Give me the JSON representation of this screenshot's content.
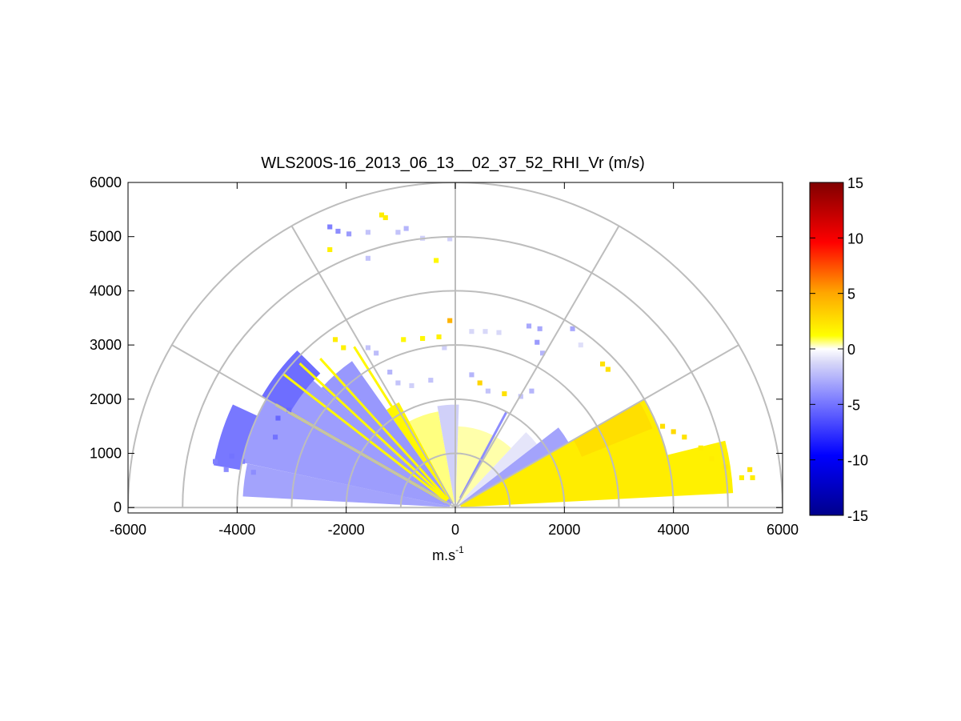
{
  "chart_data": {
    "type": "heatmap",
    "subtype": "polar RHI sector scan",
    "title": "WLS200S-16_2013_06_13__02_37_52_RHI_Vr (m/s)",
    "xlabel_base": "m.s",
    "xlabel_exp": "-1",
    "ylabel": "",
    "xlim": [
      -6000,
      6000
    ],
    "ylim": [
      -100,
      6000
    ],
    "x_ticks": [
      "-6000",
      "-4000",
      "-2000",
      "0",
      "2000",
      "4000",
      "6000"
    ],
    "y_ticks": [
      "0",
      "1000",
      "2000",
      "3000",
      "4000",
      "5000",
      "6000"
    ],
    "x_tick_values": [
      -6000,
      -4000,
      -2000,
      0,
      2000,
      4000,
      6000
    ],
    "y_tick_values": [
      0,
      1000,
      2000,
      3000,
      4000,
      5000,
      6000
    ],
    "polar_grid": {
      "range_rings": [
        1000,
        2000,
        3000,
        4000,
        5000,
        6000
      ],
      "spokes_deg": [
        0,
        30,
        60,
        90,
        120,
        150,
        180
      ]
    },
    "colorbar": {
      "ticks": [
        "15",
        "10",
        "5",
        "0",
        "-5",
        "-10",
        "-15"
      ],
      "tick_values": [
        15,
        10,
        5,
        0,
        -5,
        -10,
        -15
      ],
      "range": [
        -15,
        15
      ],
      "colormap": [
        "#00008B",
        "#0000FF",
        "#8080FF",
        "#D8D8F8",
        "#FFFFFF",
        "#FFFF00",
        "#FFA500",
        "#FF0000",
        "#800000"
      ]
    },
    "sectors": [
      {
        "el_from": 3,
        "el_to": 30,
        "r_from": 100,
        "r_to": 4000,
        "vr": 2.0
      },
      {
        "el_from": 3,
        "el_to": 14,
        "r_from": 4000,
        "r_to": 5100,
        "vr": 1.8
      },
      {
        "el_from": 22,
        "el_to": 30,
        "r_from": 2500,
        "r_to": 3900,
        "vr": 2.6
      },
      {
        "el_from": 30,
        "el_to": 38,
        "r_from": 100,
        "r_to": 2400,
        "vr": -3.2
      },
      {
        "el_from": 38,
        "el_to": 47,
        "r_from": 100,
        "r_to": 1900,
        "vr": -0.8
      },
      {
        "el_from": 47,
        "el_to": 88,
        "r_from": 100,
        "r_to": 1500,
        "vr": 0.4
      },
      {
        "el_from": 88,
        "el_to": 100,
        "r_from": 100,
        "r_to": 1900,
        "vr": -1.5
      },
      {
        "el_from": 100,
        "el_to": 118,
        "r_from": 100,
        "r_to": 1800,
        "vr": 0.6
      },
      {
        "el_from": 118,
        "el_to": 125,
        "r_from": 100,
        "r_to": 2200,
        "vr": 1.6
      },
      {
        "el_from": 125,
        "el_to": 138,
        "r_from": 100,
        "r_to": 3300,
        "vr": -3.6
      },
      {
        "el_from": 138,
        "el_to": 168,
        "r_from": 100,
        "r_to": 4000,
        "vr": -3.4
      },
      {
        "el_from": 168,
        "el_to": 177,
        "r_from": 100,
        "r_to": 3900,
        "vr": -3.2
      },
      {
        "el_from": 155,
        "el_to": 170,
        "r_from": 4000,
        "r_to": 4500,
        "vr": -4.8
      },
      {
        "el_from": 135,
        "el_to": 150,
        "r_from": 3500,
        "r_to": 4100,
        "vr": -5.2
      }
    ],
    "rays": [
      {
        "el": 122,
        "r_from": 200,
        "r_to": 3500,
        "vr": 1.5
      },
      {
        "el": 132,
        "r_from": 200,
        "r_to": 3700,
        "vr": 1.5
      },
      {
        "el": 137,
        "r_from": 200,
        "r_to": 3900,
        "vr": 1.5
      },
      {
        "el": 142,
        "r_from": 200,
        "r_to": 4000,
        "vr": 1.5
      },
      {
        "el": 150,
        "r_from": 200,
        "r_to": 3800,
        "vr": 1.5
      },
      {
        "el": 62,
        "r_from": 200,
        "r_to": 2000,
        "vr": -4.0
      }
    ],
    "cells": [
      {
        "x": -1350,
        "y": 5400,
        "vr": 2.0
      },
      {
        "x": -1280,
        "y": 5350,
        "vr": 2.0
      },
      {
        "x": -2300,
        "y": 5180,
        "vr": -4.5
      },
      {
        "x": -2150,
        "y": 5100,
        "vr": -4.0
      },
      {
        "x": -1950,
        "y": 5050,
        "vr": -3.5
      },
      {
        "x": -1600,
        "y": 5080,
        "vr": -2.0
      },
      {
        "x": -1050,
        "y": 5080,
        "vr": -2.0
      },
      {
        "x": -900,
        "y": 5150,
        "vr": -2.5
      },
      {
        "x": -600,
        "y": 4970,
        "vr": -1.5
      },
      {
        "x": -100,
        "y": 4960,
        "vr": -1.5
      },
      {
        "x": -2300,
        "y": 4760,
        "vr": 1.8
      },
      {
        "x": -1600,
        "y": 4600,
        "vr": -2.0
      },
      {
        "x": -350,
        "y": 4560,
        "vr": 1.5
      },
      {
        "x": -100,
        "y": 3450,
        "vr": 4.5
      },
      {
        "x": -2200,
        "y": 3100,
        "vr": 2.0
      },
      {
        "x": -2050,
        "y": 2950,
        "vr": 1.8
      },
      {
        "x": -1600,
        "y": 2950,
        "vr": -2.0
      },
      {
        "x": -1450,
        "y": 2850,
        "vr": -2.2
      },
      {
        "x": -950,
        "y": 3100,
        "vr": 1.5
      },
      {
        "x": -600,
        "y": 3120,
        "vr": 1.5
      },
      {
        "x": -300,
        "y": 3150,
        "vr": 1.8
      },
      {
        "x": -200,
        "y": 2950,
        "vr": -1.5
      },
      {
        "x": -1200,
        "y": 2500,
        "vr": -2.5
      },
      {
        "x": -1050,
        "y": 2300,
        "vr": -2.0
      },
      {
        "x": -800,
        "y": 2250,
        "vr": -1.5
      },
      {
        "x": -450,
        "y": 2350,
        "vr": -2.0
      },
      {
        "x": 300,
        "y": 3250,
        "vr": -1.2
      },
      {
        "x": 550,
        "y": 3250,
        "vr": -1.2
      },
      {
        "x": 800,
        "y": 3230,
        "vr": -1.2
      },
      {
        "x": 1350,
        "y": 3350,
        "vr": -3.0
      },
      {
        "x": 1550,
        "y": 3300,
        "vr": -3.0
      },
      {
        "x": 1500,
        "y": 3050,
        "vr": -3.5
      },
      {
        "x": 1600,
        "y": 2850,
        "vr": -2.5
      },
      {
        "x": 2150,
        "y": 3300,
        "vr": -3.0
      },
      {
        "x": 2300,
        "y": 3000,
        "vr": -1.0
      },
      {
        "x": 2700,
        "y": 2650,
        "vr": 2.5
      },
      {
        "x": 2800,
        "y": 2550,
        "vr": 2.5
      },
      {
        "x": 300,
        "y": 2450,
        "vr": -2.5
      },
      {
        "x": 450,
        "y": 2300,
        "vr": 3.0
      },
      {
        "x": 600,
        "y": 2150,
        "vr": -2.0
      },
      {
        "x": 900,
        "y": 2100,
        "vr": 2.5
      },
      {
        "x": 1200,
        "y": 2050,
        "vr": -2.0
      },
      {
        "x": 1400,
        "y": 2150,
        "vr": -2.5
      },
      {
        "x": 3800,
        "y": 1500,
        "vr": 2.6
      },
      {
        "x": 4000,
        "y": 1400,
        "vr": 2.8
      },
      {
        "x": 4200,
        "y": 1300,
        "vr": 2.4
      },
      {
        "x": 4500,
        "y": 1100,
        "vr": 2.0
      },
      {
        "x": 4700,
        "y": 900,
        "vr": 2.0
      },
      {
        "x": 4950,
        "y": 750,
        "vr": 2.2
      },
      {
        "x": 5400,
        "y": 700,
        "vr": 2.4
      },
      {
        "x": 5450,
        "y": 550,
        "vr": 2.0
      },
      {
        "x": 5250,
        "y": 550,
        "vr": 1.8
      },
      {
        "x": -4400,
        "y": 850,
        "vr": -4.5
      },
      {
        "x": -4200,
        "y": 700,
        "vr": -4.0
      },
      {
        "x": -4100,
        "y": 950,
        "vr": -5.0
      },
      {
        "x": -3900,
        "y": 850,
        "vr": -4.5
      },
      {
        "x": -3700,
        "y": 650,
        "vr": -4.0
      },
      {
        "x": -3300,
        "y": 1300,
        "vr": -5.0
      },
      {
        "x": -3250,
        "y": 1650,
        "vr": -5.5
      },
      {
        "x": -3050,
        "y": 1800,
        "vr": -5.5
      }
    ]
  }
}
